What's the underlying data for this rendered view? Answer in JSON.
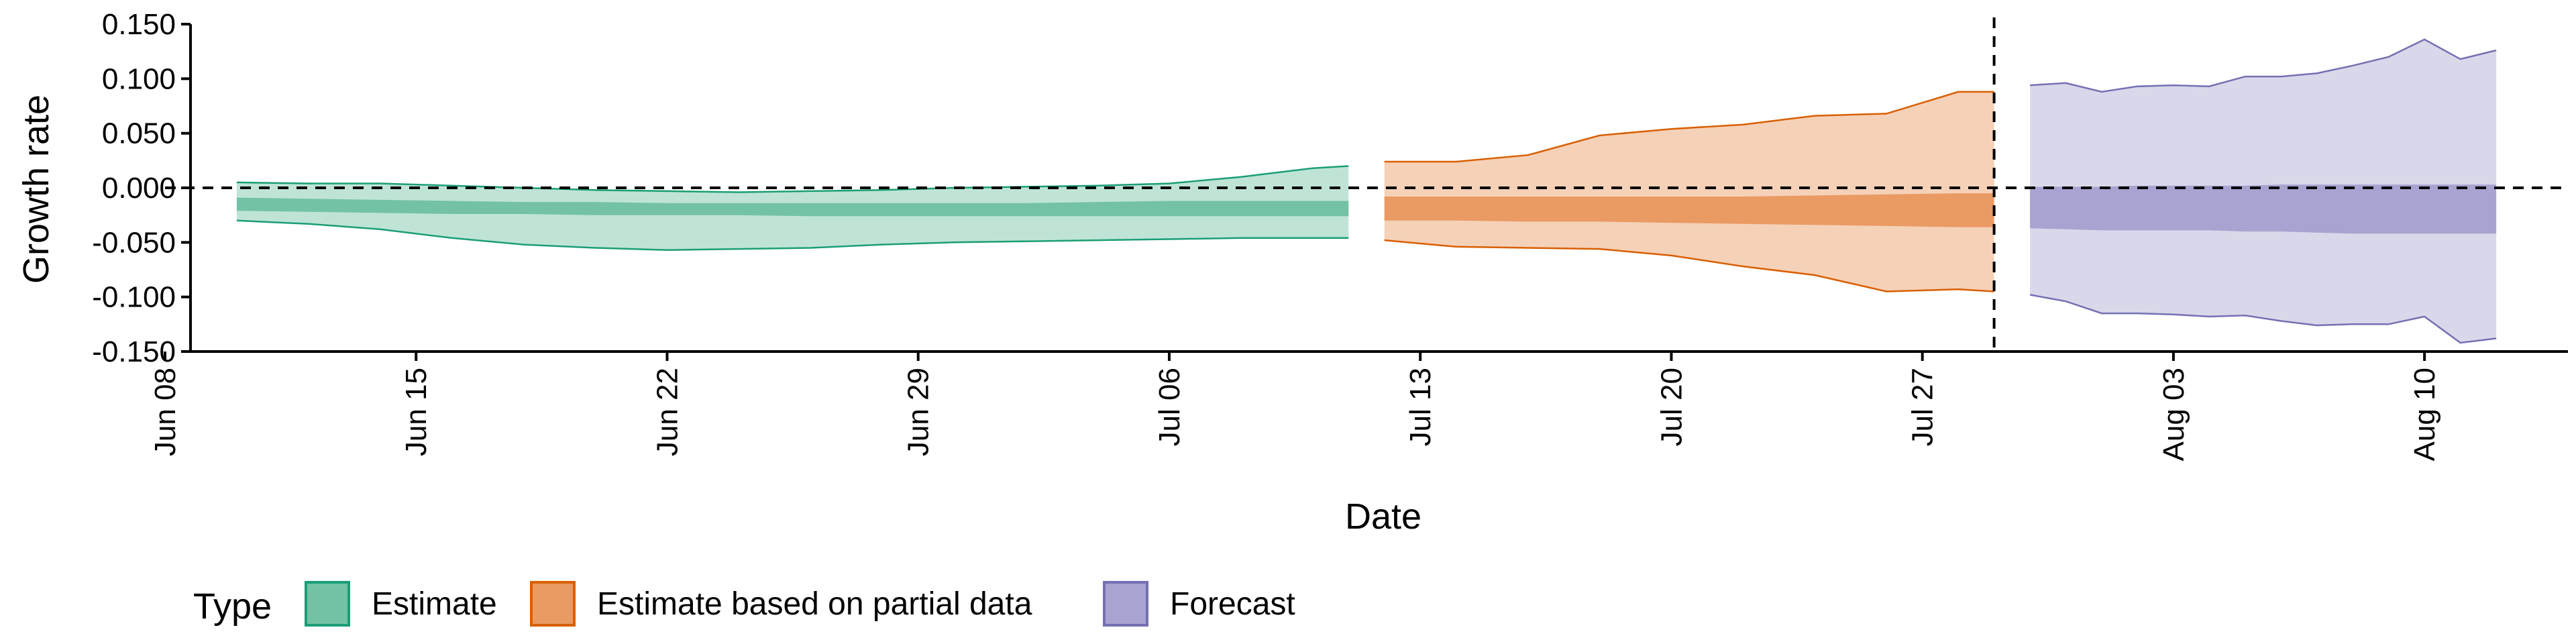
{
  "chart_data": {
    "type": "area",
    "xlabel": "Date",
    "ylabel": "Growth rate",
    "x_ticks": [
      "2020-06-08",
      "2020-06-15",
      "2020-06-22",
      "2020-06-29",
      "2020-07-06",
      "2020-07-13",
      "2020-07-20",
      "2020-07-27",
      "2020-08-03",
      "2020-08-10"
    ],
    "x_tick_labels": [
      "Jun 08",
      "Jun 15",
      "Jun 22",
      "Jun 29",
      "Jul 06",
      "Jul 13",
      "Jul 20",
      "Jul 27",
      "Aug 03",
      "Aug 10"
    ],
    "xlim": [
      "2020-06-08",
      "2020-08-14"
    ],
    "ylim": [
      -0.15,
      0.15
    ],
    "y_ticks": [
      -0.15,
      -0.1,
      -0.05,
      0,
      0.05,
      0.1,
      0.15
    ],
    "y_tick_labels": [
      "-0.150",
      "-0.100",
      "-0.050",
      "0.000",
      "0.050",
      "0.100",
      "0.150"
    ],
    "reference_lines": {
      "hline_y": 0,
      "vline_x": "2020-07-29"
    },
    "legend_title": "Type",
    "legend_position": "bottom",
    "series": [
      {
        "name": "Estimate",
        "color": "#1b9e77",
        "outer_fill": "#bfe4d6",
        "inner_fill": "#74c2a5",
        "x": [
          "2020-06-10",
          "2020-06-12",
          "2020-06-14",
          "2020-06-16",
          "2020-06-18",
          "2020-06-20",
          "2020-06-22",
          "2020-06-24",
          "2020-06-26",
          "2020-06-28",
          "2020-06-30",
          "2020-07-02",
          "2020-07-04",
          "2020-07-06",
          "2020-07-08",
          "2020-07-10",
          "2020-07-11"
        ],
        "outer_lo": [
          -0.03,
          -0.033,
          -0.038,
          -0.046,
          -0.052,
          -0.055,
          -0.057,
          -0.056,
          -0.055,
          -0.052,
          -0.05,
          -0.049,
          -0.048,
          -0.047,
          -0.046,
          -0.046,
          -0.046
        ],
        "outer_hi": [
          0.005,
          0.004,
          0.004,
          0.002,
          0.0,
          -0.002,
          -0.003,
          -0.004,
          -0.003,
          -0.002,
          0.0,
          0.001,
          0.002,
          0.004,
          0.01,
          0.018,
          0.02
        ],
        "inner_lo": [
          -0.021,
          -0.022,
          -0.023,
          -0.024,
          -0.024,
          -0.025,
          -0.025,
          -0.025,
          -0.026,
          -0.026,
          -0.026,
          -0.026,
          -0.026,
          -0.026,
          -0.026,
          -0.026,
          -0.026
        ],
        "inner_hi": [
          -0.009,
          -0.01,
          -0.011,
          -0.012,
          -0.013,
          -0.013,
          -0.014,
          -0.014,
          -0.014,
          -0.014,
          -0.014,
          -0.014,
          -0.013,
          -0.012,
          -0.012,
          -0.012,
          -0.012
        ]
      },
      {
        "name": "Estimate based on partial data",
        "color": "#d95f02",
        "outer_fill": "#f5d1b8",
        "inner_fill": "#ea9a63",
        "x": [
          "2020-07-12",
          "2020-07-14",
          "2020-07-16",
          "2020-07-18",
          "2020-07-20",
          "2020-07-22",
          "2020-07-24",
          "2020-07-26",
          "2020-07-28",
          "2020-07-29"
        ],
        "outer_lo": [
          -0.048,
          -0.054,
          -0.055,
          -0.056,
          -0.062,
          -0.072,
          -0.08,
          -0.095,
          -0.093,
          -0.095
        ],
        "outer_hi": [
          0.024,
          0.024,
          0.03,
          0.048,
          0.054,
          0.058,
          0.066,
          0.068,
          0.088,
          0.088
        ],
        "inner_lo": [
          -0.03,
          -0.03,
          -0.031,
          -0.031,
          -0.032,
          -0.033,
          -0.034,
          -0.035,
          -0.036,
          -0.036
        ],
        "inner_hi": [
          -0.008,
          -0.008,
          -0.008,
          -0.008,
          -0.008,
          -0.008,
          -0.007,
          -0.006,
          -0.005,
          -0.005
        ]
      },
      {
        "name": "Forecast",
        "color": "#7570b3",
        "outer_fill": "#d9d8ea",
        "inner_fill": "#a8a3d1",
        "x": [
          "2020-07-30",
          "2020-07-31",
          "2020-08-01",
          "2020-08-02",
          "2020-08-03",
          "2020-08-04",
          "2020-08-05",
          "2020-08-06",
          "2020-08-07",
          "2020-08-08",
          "2020-08-09",
          "2020-08-10",
          "2020-08-11",
          "2020-08-12"
        ],
        "outer_lo": [
          -0.098,
          -0.104,
          -0.115,
          -0.115,
          -0.116,
          -0.118,
          -0.117,
          -0.122,
          -0.126,
          -0.125,
          -0.125,
          -0.118,
          -0.142,
          -0.138
        ],
        "outer_hi": [
          0.094,
          0.096,
          0.088,
          0.093,
          0.094,
          0.093,
          0.102,
          0.102,
          0.105,
          0.112,
          0.12,
          0.136,
          0.118,
          0.126
        ],
        "inner_lo": [
          -0.037,
          -0.038,
          -0.039,
          -0.039,
          -0.039,
          -0.039,
          -0.04,
          -0.04,
          -0.041,
          -0.042,
          -0.042,
          -0.042,
          -0.042,
          -0.042
        ],
        "inner_hi": [
          0.001,
          0.001,
          0.001,
          0.002,
          0.002,
          0.002,
          0.002,
          0.003,
          0.003,
          0.003,
          0.003,
          0.003,
          0.003,
          0.003
        ]
      }
    ]
  }
}
